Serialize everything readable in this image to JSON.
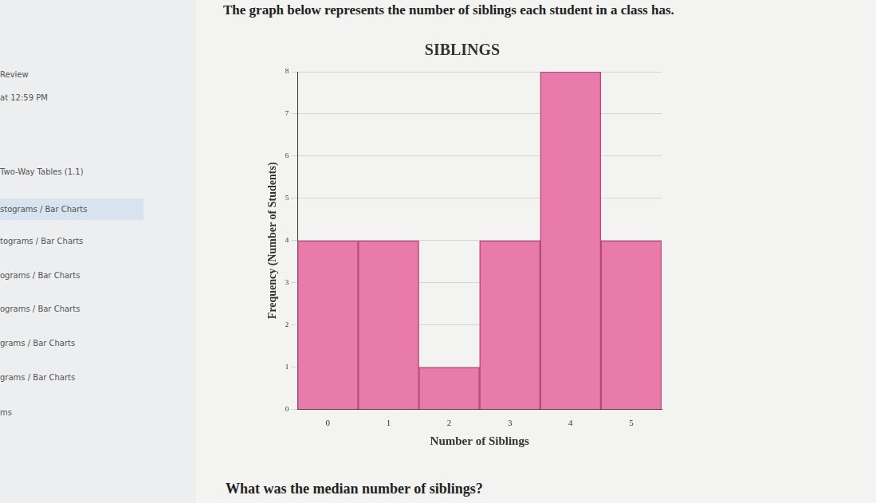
{
  "header": "The graph below represents the number of siblings each student in a class has.",
  "question": "What was the median number of siblings?",
  "sidebar": [
    "Review",
    "at 12:59 PM",
    "Two-Way Tables (1.1)",
    "stograms / Bar Charts",
    "tograms / Bar Charts",
    "ograms / Bar Charts",
    "ograms / Bar Charts",
    "grams / Bar Charts",
    "grams / Bar Charts",
    "ms"
  ],
  "chart_data": {
    "type": "bar",
    "title": "SIBLINGS",
    "x_label": "Number of Siblings",
    "y_label": "Frequency (Number of Students)",
    "categories": [
      "0",
      "1",
      "2",
      "3",
      "4",
      "5"
    ],
    "values": [
      4,
      4,
      1,
      4,
      8,
      4
    ],
    "color": "#e87ba9",
    "ylim": [
      0,
      8
    ],
    "yticks": [
      0,
      1,
      2,
      3,
      4,
      5,
      6,
      7,
      8
    ],
    "grid": true
  }
}
